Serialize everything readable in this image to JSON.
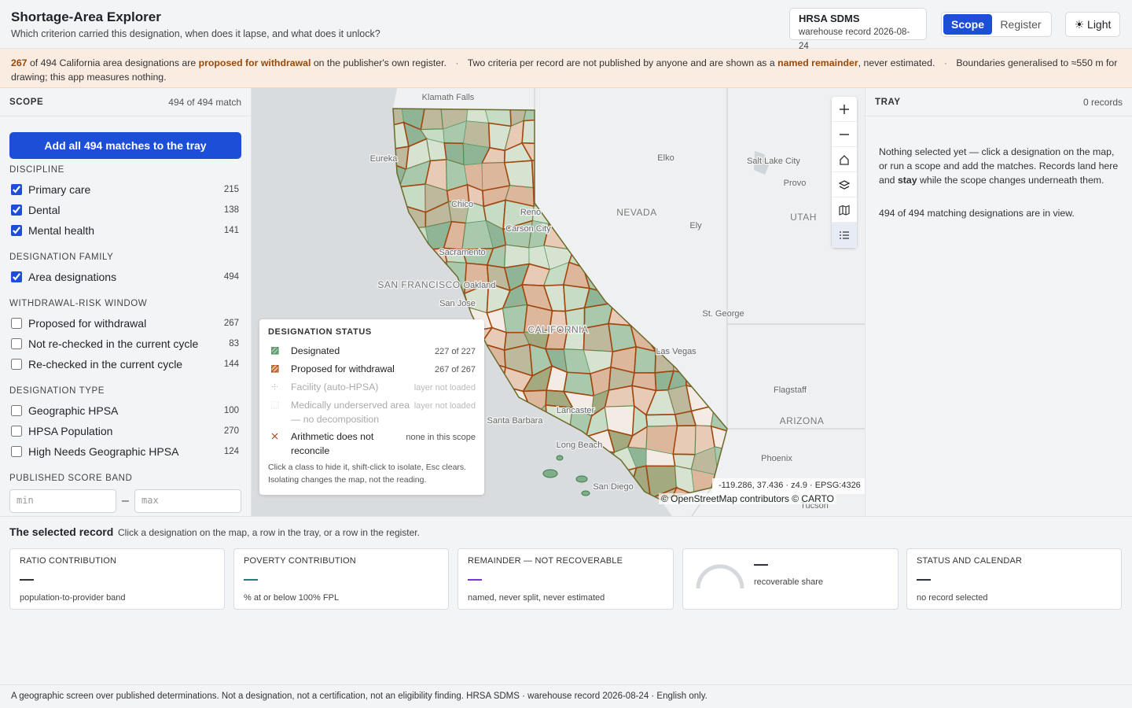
{
  "header": {
    "title": "Shortage-Area Explorer",
    "subtitle": "Which criterion carried this designation, when does it lapse, and what does it unlock?",
    "source": {
      "name": "HRSA SDMS",
      "record": "warehouse record 2026-08-24"
    },
    "tabs": [
      "Scope",
      "Register"
    ],
    "theme_button": "☀ Light"
  },
  "banner": {
    "separator": "·",
    "notes": [
      [
        "267",
        " of 494 California area designations are ",
        "proposed for withdrawal",
        " on the publisher's own register."
      ],
      [
        "Two criteria per record are not published by anyone and are shown as a ",
        "named remainder",
        ", never estimated."
      ],
      [
        "Boundaries generalised to ≈550 m for drawing; this app measures nothing."
      ]
    ]
  },
  "scope": {
    "title": "SCOPE",
    "match": "494 of 494 match",
    "add_button": "Add all 494 matches to the tray",
    "groups": [
      {
        "title": "DISCIPLINE",
        "options": [
          {
            "label": "Primary care",
            "count": 215,
            "checked": true
          },
          {
            "label": "Dental",
            "count": 138,
            "checked": true
          },
          {
            "label": "Mental health",
            "count": 141,
            "checked": true
          }
        ]
      },
      {
        "title": "DESIGNATION FAMILY",
        "options": [
          {
            "label": "Area designations",
            "count": 494,
            "checked": true
          }
        ]
      },
      {
        "title": "WITHDRAWAL-RISK WINDOW",
        "options": [
          {
            "label": "Proposed for withdrawal",
            "count": 267,
            "checked": false
          },
          {
            "label": "Not re-checked in the current cycle",
            "count": 83,
            "checked": false
          },
          {
            "label": "Re-checked in the current cycle",
            "count": 144,
            "checked": false
          }
        ]
      },
      {
        "title": "DESIGNATION TYPE",
        "options": [
          {
            "label": "Geographic HPSA",
            "count": 100,
            "checked": false
          },
          {
            "label": "HPSA Population",
            "count": 270,
            "checked": false
          },
          {
            "label": "High Needs Geographic HPSA",
            "count": 124,
            "checked": false
          }
        ]
      }
    ],
    "score_band": {
      "title": "PUBLISHED SCORE BAND",
      "min": "min",
      "max": "max",
      "separator": "–"
    }
  },
  "map": {
    "places": [
      "Klamath Falls",
      "Eureka",
      "Elko",
      "Salt Lake City",
      "Provo",
      "Reno",
      "NEVADA",
      "UTAH",
      "Ely",
      "Chico",
      "Carson City",
      "Sacramento",
      "SAN FRANCISCO",
      "Oakland",
      "San Jose",
      "CALIFORNIA",
      "St. George",
      "Las Vegas",
      "Flagstaff",
      "ARIZONA",
      "Santa Barbara",
      "Lancaster",
      "Long Beach",
      "San Diego",
      "Phoenix",
      "Tucson"
    ],
    "coords": "-119.286, 37.436 · z4.9 · EPSG:4326",
    "attribution": "© OpenStreetMap contributors © CARTO",
    "legend": {
      "title": "DESIGNATION STATUS",
      "items": [
        {
          "label": "Designated",
          "status": "227 of 227"
        },
        {
          "label": "Proposed for withdrawal",
          "status": "267 of 267"
        },
        {
          "label": "Facility (auto-HPSA)",
          "status": "layer not loaded"
        },
        {
          "label": "Medically underserved area — no decomposition",
          "status": "layer not loaded"
        },
        {
          "label": "Arithmetic does not reconcile",
          "status": "none in this scope"
        }
      ],
      "note": "Click a class to hide it, shift-click to isolate, Esc clears. Isolating changes the map, not the reading."
    }
  },
  "tray": {
    "title": "TRAY",
    "count": "0 records",
    "message": [
      "Nothing selected yet — click a designation on the map, or run a scope and add the matches. Records land here and ",
      "stay",
      " while the scope changes underneath them."
    ],
    "in_view": "494 of 494 matching designations are in view."
  },
  "selected": {
    "title": "The selected record",
    "hint": "Click a designation on the map, a row in the tray, or a row in the register.",
    "cards": [
      {
        "label": "RATIO CONTRIBUTION",
        "value": "—",
        "note": "population-to-provider band"
      },
      {
        "label": "POVERTY CONTRIBUTION",
        "value": "—",
        "note": "% at or below 100% FPL"
      },
      {
        "label": "REMAINDER — NOT RECOVERABLE",
        "value": "—",
        "note": "named, never split, never estimated"
      },
      {
        "value": "—",
        "note": "recoverable share"
      },
      {
        "label": "STATUS AND CALENDAR",
        "value": "—",
        "note": "no record selected"
      }
    ]
  },
  "footer": "A geographic screen over published determinations. Not a designation, not a certification, not an eligibility finding. HRSA SDMS · warehouse record 2026-08-24 · English only."
}
